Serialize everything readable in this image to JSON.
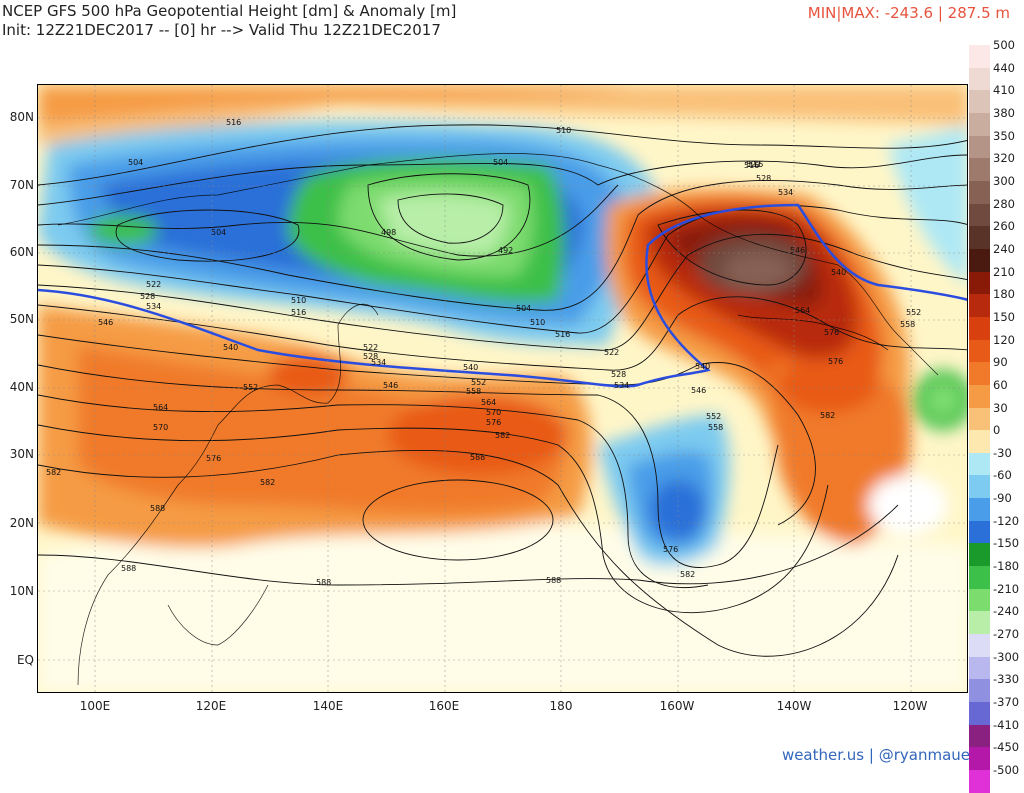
{
  "header": {
    "title_line1": "NCEP GFS 500 hPa Geopotential Height [dm] & Anomaly [m]",
    "title_line2": "Init: 12Z21DEC2017 -- [0] hr --> Valid Thu 12Z21DEC2017",
    "minmax": "MIN|MAX: -243.6 | 287.5 m"
  },
  "footer": {
    "credit": "weather.us | @ryanmaue"
  },
  "axes": {
    "lat_labels": [
      "80N",
      "70N",
      "60N",
      "50N",
      "40N",
      "30N",
      "20N",
      "10N",
      "EQ"
    ],
    "lon_labels": [
      "100E",
      "120E",
      "140E",
      "160E",
      "180",
      "160W",
      "140W",
      "120W"
    ]
  },
  "colorbar": {
    "labels": [
      "500",
      "440",
      "410",
      "380",
      "350",
      "320",
      "300",
      "280",
      "260",
      "240",
      "210",
      "180",
      "150",
      "120",
      "90",
      "60",
      "30",
      "0",
      "-30",
      "-60",
      "-90",
      "-120",
      "-150",
      "-180",
      "-210",
      "-240",
      "-270",
      "-300",
      "-330",
      "-370",
      "-410",
      "-450",
      "-500"
    ],
    "colors": [
      "#fde8e8",
      "#efd9d3",
      "#dcc4b9",
      "#c9aea0",
      "#b49486",
      "#9d7a6c",
      "#876154",
      "#704a3e",
      "#5a3328",
      "#4a1a10",
      "#8a1a08",
      "#b82a0e",
      "#d8400f",
      "#e85a18",
      "#f07a2a",
      "#f59b45",
      "#f9c078",
      "#fde8b0",
      "#aee8f5",
      "#7dcbf0",
      "#4a9de8",
      "#2a70d8",
      "#1a9a2a",
      "#3cc04a",
      "#7ddc6e",
      "#b8eea8",
      "#dcdcf6",
      "#b8b8ee",
      "#9090e0",
      "#6868d4",
      "#8a2080",
      "#b418a8",
      "#e030d8",
      "#f060e8"
    ]
  },
  "map": {
    "contour_labels": [
      "516",
      "510",
      "504",
      "498",
      "492",
      "522",
      "528",
      "534",
      "540",
      "546",
      "552",
      "558",
      "564",
      "570",
      "576",
      "582",
      "588"
    ]
  },
  "icons": {
    "map_canvas": "map-icon"
  }
}
